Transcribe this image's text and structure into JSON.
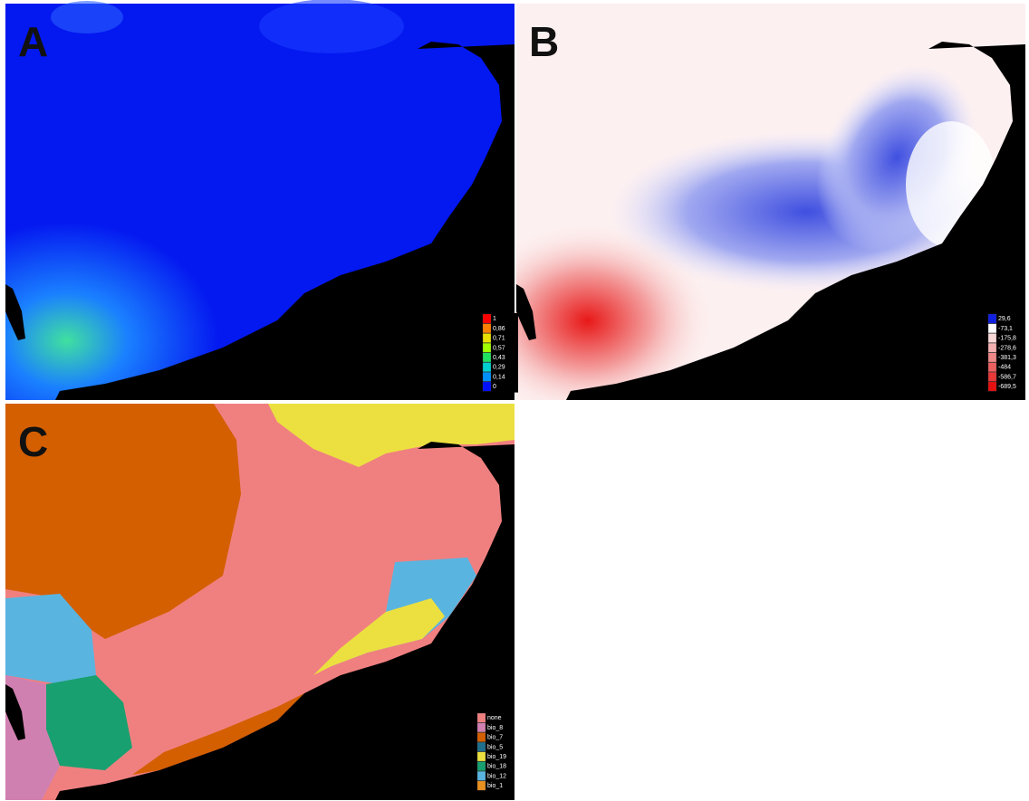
{
  "panels": [
    {
      "label": "A",
      "legend": [
        {
          "label": "1",
          "color": "#ff0000"
        },
        {
          "label": "0,86",
          "color": "#ff8000"
        },
        {
          "label": "0,71",
          "color": "#e8e000"
        },
        {
          "label": "0,57",
          "color": "#a0ff00"
        },
        {
          "label": "0,43",
          "color": "#20e060"
        },
        {
          "label": "0,29",
          "color": "#00d0d0"
        },
        {
          "label": "0,14",
          "color": "#0090ff"
        },
        {
          "label": "0",
          "color": "#0010ff"
        }
      ]
    },
    {
      "label": "B",
      "legend": [
        {
          "label": "29,6",
          "color": "#1020e0"
        },
        {
          "label": "-73,1",
          "color": "#ffffff"
        },
        {
          "label": "-175,8",
          "color": "#f8d8d8"
        },
        {
          "label": "-278,6",
          "color": "#f4b0b0"
        },
        {
          "label": "-381,3",
          "color": "#f08888"
        },
        {
          "label": "-484",
          "color": "#ec6060"
        },
        {
          "label": "-586,7",
          "color": "#e83838"
        },
        {
          "label": "-689,5",
          "color": "#e41010"
        }
      ]
    },
    {
      "label": "C",
      "legend": [
        {
          "label": "none",
          "color": "#f08080"
        },
        {
          "label": "bio_8",
          "color": "#d080b0"
        },
        {
          "label": "bio_7",
          "color": "#d45f00"
        },
        {
          "label": "bio_5",
          "color": "#1f6e8c"
        },
        {
          "label": "bio_19",
          "color": "#ece040"
        },
        {
          "label": "bio_18",
          "color": "#18a070"
        },
        {
          "label": "bio_12",
          "color": "#5ab4e0"
        },
        {
          "label": "bio_1",
          "color": "#e89020"
        }
      ]
    }
  ]
}
